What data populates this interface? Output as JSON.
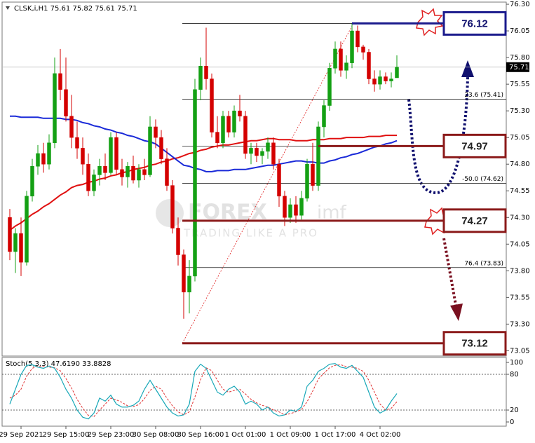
{
  "chart_data": {
    "type": "candlestick",
    "title": "CLSK,i,H1  75.61 75.82 75.61 75.71",
    "up_color": "#14a014",
    "down_color": "#d40000",
    "categories": [
      null,
      null,
      "29 Sep 2021",
      null,
      null,
      null,
      null,
      null,
      null,
      null,
      "29 Sep 15:00",
      null,
      null,
      null,
      null,
      null,
      null,
      null,
      "29 Sep 23:00",
      null,
      null,
      null,
      null,
      null,
      null,
      null,
      "30 Sep 08:00",
      null,
      null,
      null,
      null,
      null,
      null,
      null,
      "30 Sep 16:00",
      null,
      null,
      null,
      null,
      null,
      null,
      null,
      "1 Oct 01:00",
      null,
      null,
      null,
      null,
      null,
      null,
      null,
      "1 Oct 09:00",
      null,
      null,
      null,
      null,
      null,
      null,
      null,
      "1 Oct 17:00",
      null,
      null,
      null,
      null,
      null,
      null,
      null,
      "4 Oct 02:00",
      null,
      null,
      null
    ],
    "open": [
      74.3,
      73.98,
      74.15,
      73.88,
      74.5,
      74.78,
      74.9,
      74.8,
      75.0,
      75.65,
      75.5,
      75.25,
      75.05,
      74.95,
      74.8,
      74.55,
      74.7,
      74.78,
      74.72,
      75.05,
      74.75,
      74.68,
      74.78,
      74.65,
      74.75,
      74.7,
      75.15,
      75.05,
      74.85,
      74.6,
      74.2,
      73.95,
      73.6,
      73.75,
      75.5,
      75.72,
      75.6,
      75.1,
      75.0,
      75.25,
      75.1,
      75.3,
      75.25,
      74.9,
      74.95,
      74.88,
      74.92,
      75.0,
      74.8,
      74.5,
      74.3,
      74.42,
      74.32,
      74.48,
      74.8,
      74.6,
      75.15,
      75.35,
      75.7,
      75.88,
      75.68,
      75.75,
      76.05,
      75.9,
      75.85,
      75.6,
      75.55,
      75.62,
      75.58,
      75.61
    ],
    "high": [
      74.38,
      74.2,
      74.3,
      74.55,
      74.85,
      74.98,
      75.0,
      75.08,
      75.8,
      75.88,
      75.8,
      75.45,
      75.2,
      75.05,
      74.9,
      74.75,
      74.85,
      74.9,
      75.1,
      75.1,
      74.85,
      74.82,
      74.88,
      74.8,
      74.85,
      75.25,
      75.22,
      75.12,
      74.95,
      74.65,
      74.3,
      74.0,
      73.9,
      75.6,
      75.8,
      76.08,
      75.65,
      75.25,
      75.3,
      75.3,
      75.35,
      75.45,
      75.3,
      75.0,
      75.0,
      74.95,
      75.05,
      75.05,
      74.85,
      74.55,
      74.48,
      74.5,
      74.55,
      74.85,
      75.0,
      75.2,
      75.4,
      75.75,
      75.95,
      75.95,
      75.82,
      76.12,
      76.1,
      75.92,
      75.88,
      75.68,
      75.68,
      75.66,
      75.66,
      75.82
    ],
    "low": [
      73.9,
      73.78,
      73.75,
      73.85,
      74.45,
      74.7,
      74.72,
      74.75,
      74.95,
      75.4,
      75.2,
      74.95,
      74.85,
      74.7,
      74.5,
      74.5,
      74.6,
      74.65,
      74.7,
      74.7,
      74.6,
      74.58,
      74.62,
      74.58,
      74.65,
      74.68,
      74.95,
      74.8,
      74.55,
      74.15,
      73.85,
      73.35,
      73.4,
      73.7,
      75.4,
      75.5,
      75.05,
      74.95,
      74.95,
      75.05,
      75.05,
      75.2,
      74.85,
      74.8,
      74.82,
      74.8,
      74.85,
      74.75,
      74.4,
      74.22,
      74.25,
      74.25,
      74.28,
      74.45,
      74.55,
      74.55,
      75.05,
      75.3,
      75.65,
      75.62,
      75.6,
      75.7,
      75.85,
      75.78,
      75.55,
      75.48,
      75.5,
      75.55,
      75.52,
      75.61
    ],
    "close": [
      73.98,
      74.15,
      73.88,
      74.5,
      74.78,
      74.9,
      74.8,
      75.0,
      75.65,
      75.5,
      75.25,
      75.05,
      74.95,
      74.8,
      74.55,
      74.7,
      74.78,
      74.72,
      75.05,
      74.75,
      74.68,
      74.78,
      74.65,
      74.75,
      74.7,
      75.15,
      75.05,
      74.85,
      74.6,
      74.2,
      73.95,
      73.6,
      73.75,
      75.5,
      75.72,
      75.6,
      75.1,
      75.0,
      75.25,
      75.1,
      75.3,
      75.25,
      74.9,
      74.95,
      74.88,
      74.92,
      75.0,
      74.8,
      74.5,
      74.3,
      74.42,
      74.32,
      74.48,
      74.8,
      74.6,
      75.15,
      75.35,
      75.7,
      75.88,
      75.68,
      75.75,
      76.05,
      75.9,
      75.85,
      75.6,
      75.55,
      75.62,
      75.58,
      75.6,
      75.71
    ],
    "ma_lines": [
      {
        "color": "#e01010",
        "values": [
          74.18,
          74.22,
          74.25,
          74.29,
          74.33,
          74.36,
          74.4,
          74.43,
          74.47,
          74.51,
          74.54,
          74.58,
          74.6,
          74.61,
          74.63,
          74.64,
          74.66,
          74.67,
          74.69,
          74.7,
          74.72,
          74.73,
          74.75,
          74.76,
          74.77,
          74.79,
          74.8,
          74.82,
          74.83,
          74.85,
          74.86,
          74.88,
          74.9,
          74.91,
          74.93,
          74.94,
          74.96,
          74.97,
          74.98,
          74.98,
          74.99,
          75.0,
          75.01,
          75.02,
          75.02,
          75.03,
          75.04,
          75.04,
          75.03,
          75.03,
          75.03,
          75.02,
          75.02,
          75.02,
          75.03,
          75.03,
          75.03,
          75.04,
          75.04,
          75.04,
          75.05,
          75.05,
          75.05,
          75.05,
          75.06,
          75.06,
          75.06,
          75.07,
          75.07,
          75.07
        ]
      },
      {
        "color": "#1a2ad8",
        "values": [
          75.25,
          75.25,
          75.24,
          75.24,
          75.24,
          75.24,
          75.23,
          75.23,
          75.23,
          75.23,
          75.22,
          75.22,
          75.21,
          75.19,
          75.18,
          75.16,
          75.15,
          75.13,
          75.12,
          75.1,
          75.09,
          75.07,
          75.06,
          75.04,
          75.02,
          75.01,
          74.99,
          74.95,
          74.91,
          74.87,
          74.83,
          74.79,
          74.78,
          74.76,
          74.75,
          74.73,
          74.73,
          74.74,
          74.74,
          74.74,
          74.75,
          74.75,
          74.75,
          74.76,
          74.77,
          74.78,
          74.79,
          74.79,
          74.8,
          74.81,
          74.82,
          74.83,
          74.83,
          74.82,
          74.82,
          74.81,
          74.81,
          74.83,
          74.84,
          74.86,
          74.87,
          74.89,
          74.9,
          74.92,
          74.94,
          74.96,
          74.97,
          74.99,
          75.0,
          75.02
        ]
      }
    ],
    "ylim": [
      73.0,
      76.32
    ],
    "yticks": [
      {
        "value": 76.3,
        "label": "76.30"
      },
      76.05,
      {
        "value": 75.8,
        "label": "75.80"
      },
      75.55,
      {
        "value": 75.3,
        "label": "75.30"
      },
      75.05,
      {
        "value": 74.8,
        "label": "74.80"
      },
      74.55,
      {
        "value": 74.3,
        "label": "74.30"
      },
      74.05,
      {
        "value": 73.8,
        "label": "73.80"
      },
      73.55,
      {
        "value": 73.3,
        "label": "73.30"
      },
      73.05
    ],
    "fib_levels": [
      {
        "value": 76.12,
        "label": null
      },
      {
        "value": 75.41,
        "label": "23.6 (75.41)"
      },
      {
        "value": 74.97,
        "label": null
      },
      {
        "value": 74.62,
        "label": "-50.0 (74.62)"
      },
      {
        "value": 74.27,
        "label": null
      },
      {
        "value": 73.83,
        "label": "76.4 (73.83)"
      },
      {
        "value": 73.12,
        "label": null
      }
    ],
    "annotations": [
      {
        "value": 76.12,
        "color": "#1a1a8c"
      },
      {
        "value": 74.97,
        "color": "#8b1a1a"
      },
      {
        "value": 74.27,
        "color": "#8b1a1a"
      },
      {
        "value": 73.12,
        "color": "#8b1a1a"
      }
    ],
    "watermark_brand": "FOREX",
    "watermark_suffix": "imf",
    "watermark_tagline": "TRADING LIKE A PRO",
    "stoch": {
      "title": "Stoch(5,3,3) 47.6190 33.8828",
      "ylim": [
        0,
        100
      ],
      "yticks": [
        100,
        80,
        20,
        0
      ],
      "levels": [
        80,
        20
      ],
      "main": {
        "color": "#18a8b8",
        "values": [
          30,
          55,
          80,
          95,
          96,
          92,
          90,
          94,
          90,
          75,
          55,
          40,
          20,
          8,
          5,
          15,
          40,
          35,
          45,
          30,
          25,
          25,
          28,
          35,
          55,
          70,
          55,
          40,
          25,
          15,
          10,
          12,
          30,
          85,
          97,
          90,
          70,
          50,
          45,
          55,
          60,
          50,
          30,
          35,
          30,
          20,
          25,
          15,
          10,
          12,
          20,
          18,
          25,
          60,
          70,
          85,
          90,
          97,
          98,
          92,
          90,
          95,
          85,
          75,
          50,
          25,
          15,
          20,
          35,
          47.619
        ]
      },
      "signal": {
        "color": "#e03030",
        "values": [
          40,
          45,
          55,
          77,
          90,
          94,
          93,
          92,
          91,
          86,
          73,
          57,
          38,
          23,
          11,
          9,
          20,
          30,
          40,
          37,
          33,
          27,
          26,
          29,
          39,
          53,
          60,
          55,
          40,
          27,
          17,
          12,
          17,
          42,
          71,
          91,
          86,
          70,
          55,
          50,
          53,
          55,
          47,
          38,
          32,
          28,
          25,
          20,
          17,
          12,
          14,
          17,
          21,
          34,
          52,
          72,
          82,
          91,
          95,
          96,
          93,
          92,
          90,
          85,
          70,
          50,
          30,
          20,
          23,
          33.8828
        ]
      }
    }
  }
}
